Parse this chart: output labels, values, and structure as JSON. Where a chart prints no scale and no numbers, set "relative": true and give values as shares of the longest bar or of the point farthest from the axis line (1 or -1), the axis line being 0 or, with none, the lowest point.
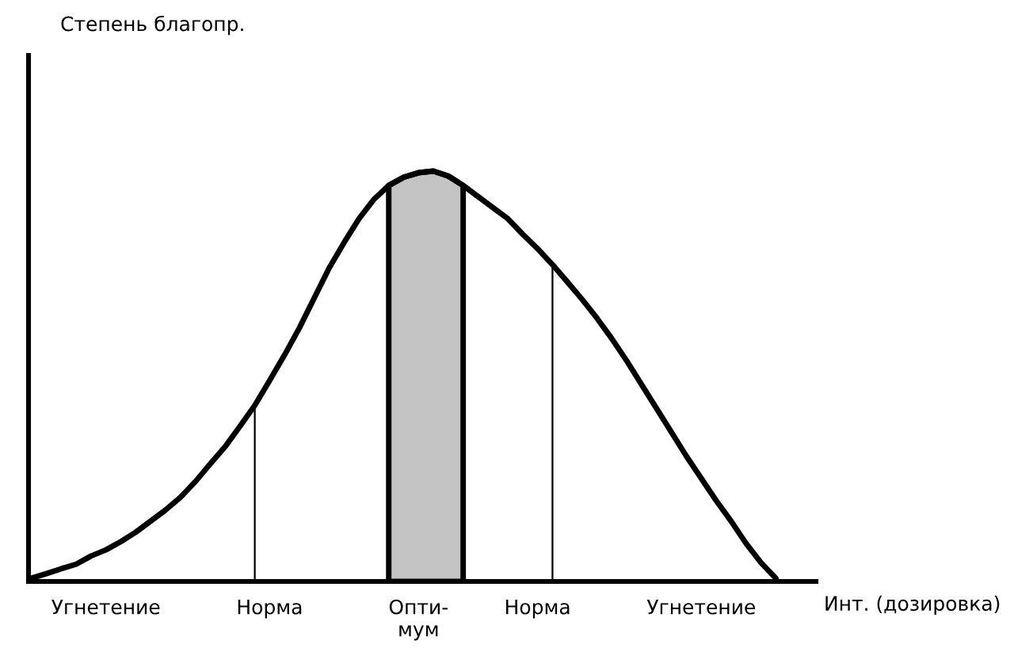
{
  "chart_data": {
    "type": "line",
    "relative": true,
    "xlabel": "Инт. (дозировка)",
    "annotations": [
      "Степень благопр."
    ],
    "categories": [
      null,
      null,
      null,
      null,
      null,
      "Угнетение",
      null,
      null,
      null,
      null,
      null,
      null,
      null,
      null,
      null,
      null,
      "Норма",
      null,
      null,
      null,
      null,
      null,
      null,
      null,
      null,
      null,
      "Опти-\nмум",
      null,
      null,
      null,
      null,
      null,
      null,
      null,
      "Норма",
      null,
      null,
      null,
      null,
      null,
      null,
      null,
      null,
      null,
      null,
      "Угнетение",
      null,
      null,
      null,
      null,
      null
    ],
    "series": [
      {
        "color": "#000000",
        "values": [
          0.008,
          0.019,
          0.031,
          0.042,
          0.062,
          0.077,
          0.097,
          0.12,
          0.147,
          0.174,
          0.205,
          0.243,
          0.286,
          0.328,
          0.378,
          0.429,
          0.49,
          0.552,
          0.618,
          0.691,
          0.764,
          0.826,
          0.884,
          0.931,
          0.965,
          0.985,
          0.996,
          1.0,
          0.988,
          0.965,
          0.938,
          0.911,
          0.884,
          0.846,
          0.811,
          0.772,
          0.73,
          0.687,
          0.641,
          0.591,
          0.537,
          0.479,
          0.421,
          0.363,
          0.305,
          0.251,
          0.197,
          0.147,
          0.093,
          0.046,
          0.008
        ]
      },
      {
        "type": "area",
        "color": "#c3c3c3",
        "values": [
          null,
          null,
          null,
          null,
          null,
          null,
          null,
          null,
          null,
          null,
          null,
          null,
          null,
          null,
          null,
          null,
          null,
          null,
          null,
          null,
          null,
          null,
          null,
          null,
          0.965,
          0.985,
          0.996,
          1.0,
          0.988,
          0.965,
          null,
          null,
          null,
          null,
          null,
          null,
          null,
          null,
          null,
          null,
          null,
          null,
          null,
          null,
          null,
          null,
          null,
          null,
          null,
          null,
          null
        ]
      },
      {
        "type": "bar",
        "color": "#000000",
        "values": [
          null,
          null,
          null,
          null,
          null,
          null,
          null,
          null,
          null,
          null,
          null,
          null,
          null,
          null,
          null,
          0.429,
          null,
          null,
          null,
          null,
          null,
          null,
          null,
          null,
          null,
          null,
          null,
          null,
          null,
          null,
          null,
          null,
          null,
          null,
          null,
          0.772,
          null,
          null,
          null,
          null,
          null,
          null,
          null,
          null,
          null,
          null,
          null,
          null,
          null,
          null,
          null
        ]
      }
    ]
  }
}
